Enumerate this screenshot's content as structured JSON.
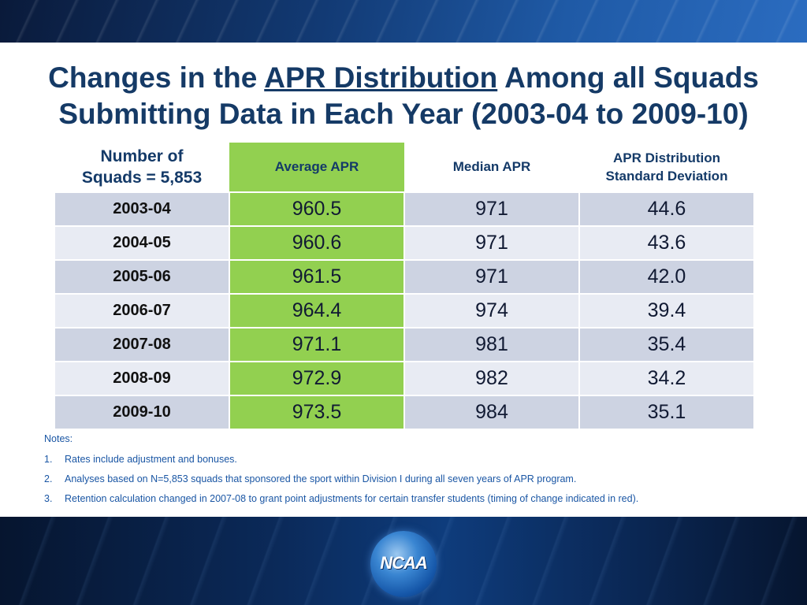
{
  "title": {
    "line1_pre": "Changes in the ",
    "line1_underlined": "APR Distribution",
    "line1_post": " Among all Squads",
    "line2": "Submitting Data in Each Year (2003-04 to 2009-10)"
  },
  "table": {
    "header": {
      "squads_line1": "Number of",
      "squads_line2": "Squads = 5,853",
      "average": "Average APR",
      "median": "Median APR",
      "std_line1": "APR Distribution",
      "std_line2": "Standard Deviation"
    },
    "rows": [
      {
        "year": "2003-04",
        "average": "960.5",
        "median": "971",
        "std": "44.6"
      },
      {
        "year": "2004-05",
        "average": "960.6",
        "median": "971",
        "std": "43.6"
      },
      {
        "year": "2005-06",
        "average": "961.5",
        "median": "971",
        "std": "42.0"
      },
      {
        "year": "2006-07",
        "average": "964.4",
        "median": "974",
        "std": "39.4"
      },
      {
        "year": "2007-08",
        "average": "971.1",
        "median": "981",
        "std": "35.4"
      },
      {
        "year": "2008-09",
        "average": "972.9",
        "median": "982",
        "std": "34.2"
      },
      {
        "year": "2009-10",
        "average": "973.5",
        "median": "984",
        "std": "35.1"
      }
    ]
  },
  "notes": {
    "heading": "Notes:",
    "items": [
      {
        "num": "1.",
        "text": "Rates include adjustment and bonuses."
      },
      {
        "num": "2.",
        "text": "Analyses based on N=5,853 squads that sponsored the sport within Division I during all seven years of APR program."
      },
      {
        "num": "3.",
        "text": "Retention calculation changed in 2007-08 to grant point adjustments for certain transfer students (timing of change indicated in red)."
      }
    ]
  },
  "logo": {
    "text": "NCAA"
  },
  "colors": {
    "title": "#153a66",
    "average_column": "#92d050",
    "row_dark": "#cdd3e2",
    "row_light": "#e8ebf3",
    "notes": "#1a56a4"
  }
}
